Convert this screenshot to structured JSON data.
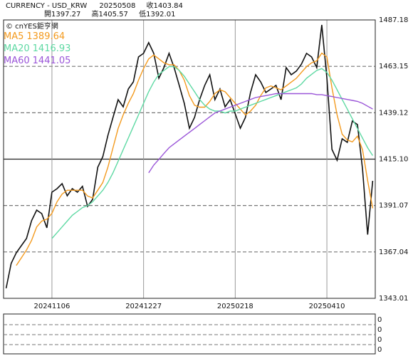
{
  "header": {
    "symbol": "CURRENCY - USD_KRW",
    "date": "20250508",
    "close_label": "收",
    "open_label": "開",
    "open": 1397.27,
    "high_label": "高",
    "high": 1405.57,
    "low_label": "低",
    "low": 1392.01
  },
  "watermark": "© cnYES鉅亨網",
  "sub_panel": {
    "tick_labels": [
      "0",
      "0",
      "0",
      "0"
    ]
  },
  "chart_data": {
    "type": "line",
    "categories": [
      null,
      null,
      null,
      null,
      null,
      null,
      null,
      null,
      null,
      "20241106",
      null,
      null,
      null,
      null,
      null,
      null,
      null,
      null,
      null,
      null,
      null,
      null,
      null,
      null,
      null,
      null,
      null,
      "20241227",
      null,
      null,
      null,
      null,
      null,
      null,
      null,
      null,
      null,
      null,
      null,
      null,
      null,
      null,
      null,
      null,
      null,
      "20250218",
      null,
      null,
      null,
      null,
      null,
      null,
      null,
      null,
      null,
      null,
      null,
      null,
      null,
      null,
      null,
      null,
      null,
      "20250410",
      null,
      null,
      null,
      null,
      null,
      null,
      null,
      null,
      null
    ],
    "ylim": [
      1343.01,
      1487.18
    ],
    "yticks": [
      1343.01,
      1367.04,
      1391.07,
      {
        "value": 1415.1,
        "label": "1415.10"
      },
      1439.12,
      1463.15,
      1487.18
    ],
    "grid": true,
    "series": [
      {
        "color": "#111111",
        "values": [
          1348.2,
          1361.1,
          1366.6,
          1370.3,
          1374,
          1383.2,
          1388.7,
          1386.9,
          1379.5,
          1398,
          1399.8,
          1402.4,
          1396.1,
          1399.8,
          1398,
          1401,
          1390.6,
          1394.3,
          1410.9,
          1416.4,
          1427.5,
          1436.7,
          1445.9,
          1442.2,
          1451.4,
          1455.1,
          1468,
          1469.9,
          1475.4,
          1469.9,
          1457,
          1462.5,
          1469.9,
          1462.5,
          1453.3,
          1444,
          1431.1,
          1436.7,
          1445.9,
          1453.3,
          1458.8,
          1445.9,
          1451.4,
          1442.2,
          1445.9,
          1438.5,
          1431.1,
          1436.7,
          1449.6,
          1458.8,
          1455.1,
          1449.6,
          1451.4,
          1453.3,
          1445.9,
          1462.5,
          1458.8,
          1460.7,
          1464.3,
          1469.9,
          1468,
          1462.5,
          1484.6,
          1457,
          1420.1,
          1414.5,
          1425.6,
          1423.8,
          1434.8,
          1433,
          1410,
          1376,
          1403.84
        ]
      },
      {
        "name": "MA5",
        "color": "#f39a1e",
        "values": [
          null,
          null,
          1360,
          1364,
          1368,
          1373,
          1380,
          1383,
          1384,
          1387,
          1393,
          1397,
          1399,
          1399,
          1399,
          1399,
          1396,
          1395,
          1399,
          1403,
          1411,
          1421,
          1431,
          1438,
          1444,
          1449,
          1456,
          1462,
          1467,
          1469,
          1467,
          1465,
          1464,
          1464,
          1461,
          1456,
          1448,
          1443,
          1442,
          1442,
          1445,
          1449,
          1451,
          1450,
          1447,
          1444,
          1441,
          1438,
          1440,
          1443,
          1448,
          1452,
          1453,
          1452,
          1451,
          1453,
          1455,
          1457,
          1460,
          1463,
          1465,
          1466,
          1470,
          1468,
          1452,
          1438,
          1428,
          1425,
          1424,
          1427,
          1420,
          1404,
          1389.64
        ]
      },
      {
        "name": "MA20",
        "color": "#5ed9a3",
        "values": [
          null,
          null,
          null,
          null,
          null,
          null,
          null,
          null,
          null,
          1374,
          1377,
          1380,
          1383,
          1386,
          1388,
          1390,
          1391,
          1393,
          1396,
          1399,
          1403,
          1408,
          1414,
          1420,
          1426,
          1432,
          1438,
          1444,
          1450,
          1455,
          1459,
          1461,
          1463,
          1463,
          1461,
          1458,
          1454,
          1450,
          1446,
          1443,
          1441,
          1440,
          1440,
          1439,
          1440,
          1440,
          1441,
          1442,
          1443,
          1444,
          1445,
          1446,
          1447,
          1448,
          1449,
          1450,
          1451,
          1452,
          1454,
          1457,
          1459,
          1461,
          1462,
          1460,
          1456,
          1451,
          1446,
          1441,
          1436,
          1431,
          1426,
          1421,
          1416.93
        ]
      },
      {
        "name": "MA60",
        "color": "#9a55d8",
        "values": [
          null,
          null,
          null,
          null,
          null,
          null,
          null,
          null,
          null,
          null,
          null,
          null,
          null,
          null,
          null,
          null,
          null,
          null,
          null,
          null,
          null,
          null,
          null,
          null,
          null,
          null,
          null,
          null,
          1408,
          1412,
          1415,
          1418,
          1421,
          1423,
          1425,
          1427,
          1429,
          1431,
          1433,
          1435,
          1437,
          1439,
          1440,
          1441,
          1442,
          1443,
          1444,
          1445,
          1446,
          1447,
          1447.5,
          1448,
          1448.5,
          1449,
          1449,
          1449,
          1449,
          1449,
          1449,
          1449,
          1449,
          1448.5,
          1448.5,
          1448,
          1447.5,
          1447,
          1446.5,
          1446,
          1445.5,
          1445,
          1444,
          1442.5,
          1441.05
        ]
      }
    ]
  }
}
